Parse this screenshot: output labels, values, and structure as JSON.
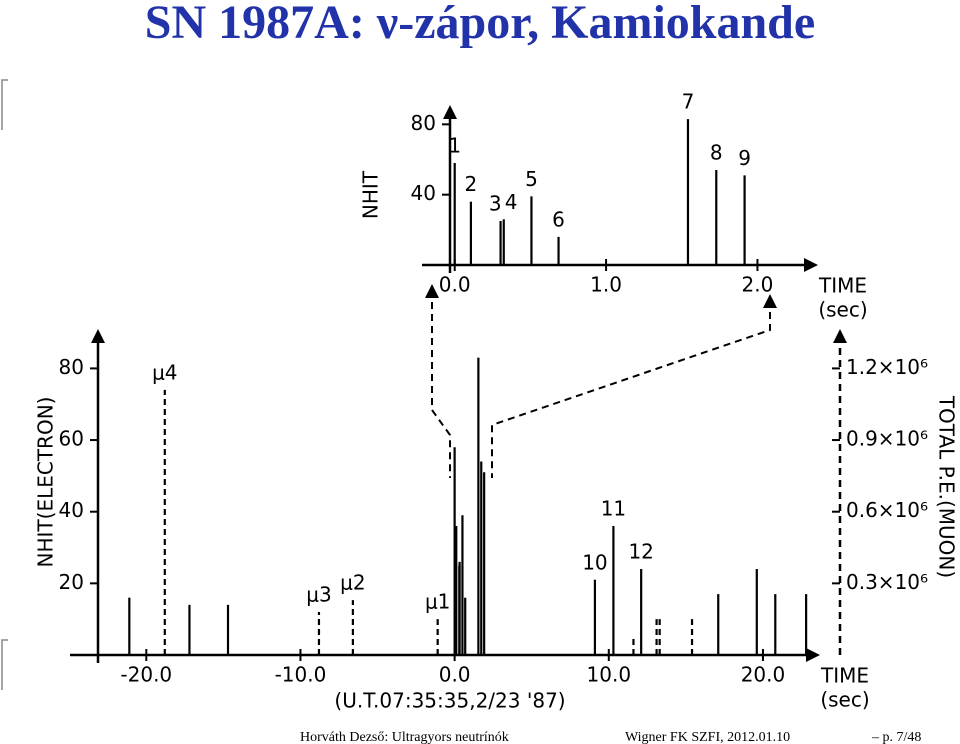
{
  "title": "SN 1987A: ν-zápor, Kamiokande",
  "footer": {
    "author": "Horváth Dezső: Ultragyors neutrínók",
    "venue": "Wigner FK SZFI, 2012.01.10",
    "page": "– p. 7/48"
  },
  "chart_data": [
    {
      "type": "stem",
      "y_label": "NHIT",
      "x_label": "TIME",
      "x_unit": "(sec)",
      "xlim": [
        -0.15,
        2.4
      ],
      "ylim": [
        0,
        91
      ],
      "xticks": [
        {
          "value": 0,
          "label": "0.0"
        },
        {
          "value": 1,
          "label": "1.0"
        },
        {
          "value": 2,
          "label": "2.0"
        }
      ],
      "yticks": [
        40,
        80
      ],
      "series": [
        {
          "name": "electron",
          "color": "#000000",
          "line_style": "solid",
          "x": [
            0.0,
            0.107,
            0.303,
            0.324,
            0.507,
            0.686,
            1.541,
            1.728,
            1.915
          ],
          "values": [
            58,
            36,
            25,
            26,
            39,
            16,
            83,
            54,
            51
          ],
          "labels": [
            "1",
            "2",
            "3",
            "4",
            "5",
            "6",
            "7",
            "8",
            "9"
          ]
        }
      ]
    },
    {
      "type": "stem",
      "y_label": "NHIT(ELECTRON)",
      "y2_label": "TOTAL P.E.(MUON)",
      "x_label": "TIME",
      "x_unit": "(sec)",
      "x_note": "(U.T.07:35:35,2/23 '87)",
      "xlim": [
        -24.3,
        23.7
      ],
      "ylim": [
        0,
        91
      ],
      "y2lim": [
        0,
        1365000
      ],
      "xticks": [
        {
          "value": -20,
          "label": "-20.0"
        },
        {
          "value": -10,
          "label": "-10.0"
        },
        {
          "value": 0,
          "label": "0.0"
        },
        {
          "value": 10,
          "label": "10.0"
        },
        {
          "value": 20,
          "label": "20.0"
        }
      ],
      "yticks": [
        20,
        40,
        60,
        80
      ],
      "y2ticks": [
        {
          "value": 300000,
          "label": "0.3×10⁶"
        },
        {
          "value": 600000,
          "label": "0.6×10⁶"
        },
        {
          "value": 900000,
          "label": "0.9×10⁶"
        },
        {
          "value": 1200000,
          "label": "1.2×10⁶"
        }
      ],
      "series": [
        {
          "name": "electron",
          "color": "#000000",
          "line_style": "solid",
          "x": [
            -21.1,
            -17.2,
            -14.7,
            0.0,
            0.107,
            0.303,
            0.324,
            0.507,
            0.686,
            1.541,
            1.728,
            1.915,
            9.1,
            10.3,
            12.1,
            17.1,
            19.6,
            20.8,
            22.8
          ],
          "values": [
            16,
            14,
            14,
            58,
            36,
            25,
            26,
            39,
            16,
            83,
            54,
            51,
            21,
            36,
            24,
            17,
            24,
            17,
            17
          ],
          "labels": [
            null,
            null,
            null,
            null,
            null,
            null,
            null,
            null,
            null,
            null,
            null,
            null,
            "10",
            "11",
            "12",
            null,
            null,
            null,
            null
          ]
        },
        {
          "name": "muon",
          "color": "#000000",
          "line_style": "dashed",
          "axis": "y2",
          "x": [
            -18.8,
            -8.8,
            -6.6,
            -1.1,
            11.6,
            13.1,
            13.3,
            15.4
          ],
          "values": [
            1110000,
            180000,
            230000,
            150000,
            70000,
            150000,
            150000,
            150000
          ],
          "labels": [
            "μ4",
            "μ3",
            "μ2",
            "μ1",
            null,
            null,
            null,
            null
          ]
        }
      ]
    }
  ]
}
